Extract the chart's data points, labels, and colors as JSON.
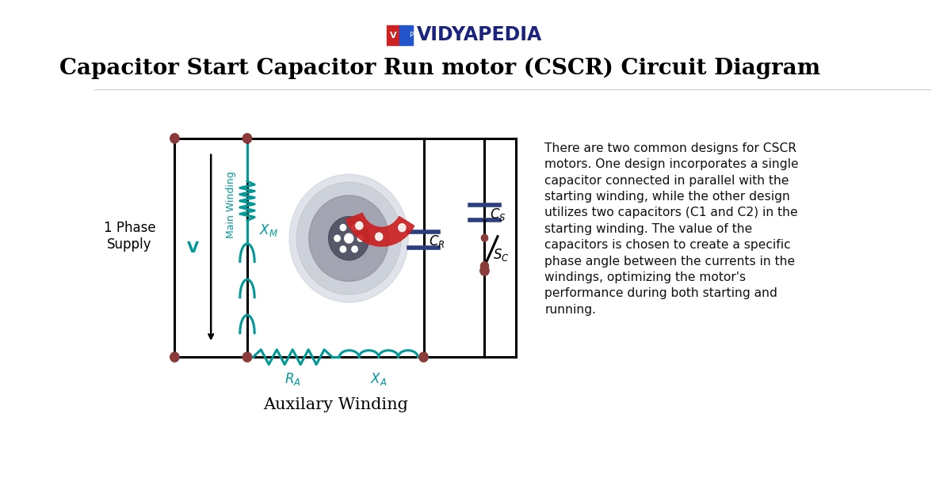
{
  "title": "Capacitor Start Capacitor Run motor (CSCR) Circuit Diagram",
  "brand": "VIDYAPEDIA",
  "bg_color": "#ffffff",
  "circuit_color": "#000000",
  "teal_color": "#009999",
  "node_color": "#8B3A3A",
  "description": "There are two common designs for CSCR\nmotors. One design incorporates a single\ncapacitor connected in parallel with the\nstarting winding, while the other design\nutilizes two capacitors (C1 and C2) in the\nstarting winding. The value of the\ncapacitors is chosen to create a specific\nphase angle between the currents in the\nwindings, optimizing the motor's\nperformance during both starting and\nrunning.",
  "supply_label": "1 Phase\nSupply",
  "voltage_label": "V",
  "main_winding_label": "Main Winding",
  "aux_winding_label": "Auxilary Winding",
  "cap_color": "#2c3e7e",
  "brand_color": "#1a237e",
  "icon_red": "#cc2222",
  "icon_blue": "#2255cc"
}
